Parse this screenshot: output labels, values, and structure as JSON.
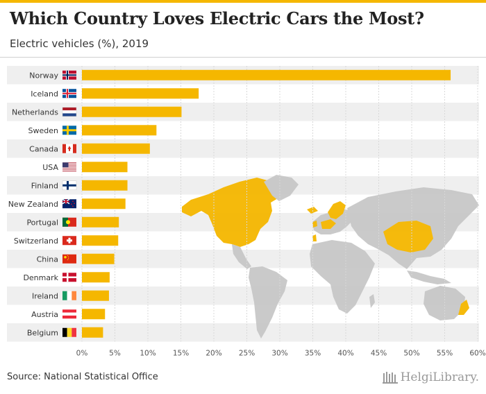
{
  "header": {
    "title": "Which Country Loves Electric Cars the Most?",
    "subtitle": "Electric vehicles (%), 2019"
  },
  "footer": {
    "source": "Source: National Statistical Office",
    "brand": "HelgiLibrary."
  },
  "colors": {
    "bar": "#f5b700",
    "map_land": "#c8c8c8",
    "map_highlight": "#f5b700",
    "row_stripe": "#efefef"
  },
  "chart_data": {
    "type": "bar",
    "orientation": "horizontal",
    "title": "Which Country Loves Electric Cars the Most?",
    "subtitle": "Electric vehicles (%), 2019",
    "categories": [
      "Norway",
      "Iceland",
      "Netherlands",
      "Sweden",
      "Canada",
      "USA",
      "Finland",
      "New Zealand",
      "Portugal",
      "Switzerland",
      "China",
      "Denmark",
      "Ireland",
      "Austria",
      "Belgium"
    ],
    "values": [
      55.9,
      17.7,
      15.1,
      11.3,
      10.3,
      6.9,
      6.9,
      6.6,
      5.6,
      5.5,
      4.9,
      4.2,
      4.1,
      3.5,
      3.2
    ],
    "flags": [
      "flag-norway",
      "flag-iceland",
      "flag-netherlands",
      "flag-sweden",
      "flag-canada",
      "flag-usa",
      "flag-finland",
      "flag-new-zealand",
      "flag-portugal",
      "flag-switzerland",
      "flag-china",
      "flag-denmark",
      "flag-ireland",
      "flag-austria",
      "flag-belgium"
    ],
    "xlim": [
      0,
      60
    ],
    "xticks": [
      "0%",
      "5%",
      "10%",
      "15%",
      "20%",
      "25%",
      "30%",
      "35%",
      "40%",
      "45%",
      "50%",
      "55%",
      "60%"
    ],
    "grid": true,
    "background_map": "world-map highlighting the listed countries"
  }
}
